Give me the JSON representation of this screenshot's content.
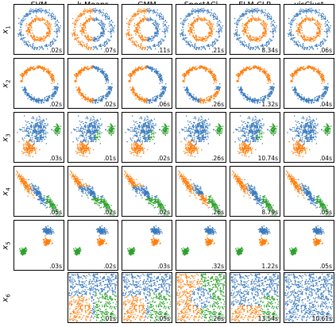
{
  "chart_data": {
    "type": "scatter",
    "methods": [
      "SVM",
      "k-Means",
      "GMM",
      "SpectACl",
      "ELM-CLR",
      "visClust"
    ],
    "datasets": [
      {
        "label": "x",
        "sub": "1",
        "kind": "rings",
        "times": [
          ".02s",
          ".07s",
          ".11s",
          ".21s",
          "8.34s",
          ".06s"
        ]
      },
      {
        "label": "x",
        "sub": "2",
        "kind": "moons",
        "times": [
          ".02s",
          ".02s",
          ".06s",
          ".26s",
          "1.32s",
          ".04s"
        ]
      },
      {
        "label": "x",
        "sub": "3",
        "kind": "blobs",
        "times": [
          ".03s",
          ".01s",
          ".02s",
          ".26s",
          "10.74s",
          ".04s"
        ]
      },
      {
        "label": "x",
        "sub": "4",
        "kind": "aniso",
        "times": [
          ".05s",
          ".02s",
          ".02s",
          ".26s",
          "8.79s",
          ".05s"
        ]
      },
      {
        "label": "x",
        "sub": "5",
        "kind": "varied",
        "times": [
          ".03s",
          ".02s",
          ".03s",
          ".32s",
          "1.22s",
          ".05s"
        ]
      },
      {
        "label": "x",
        "sub": "6",
        "kind": "uniform",
        "times": [
          "",
          ".01s",
          ".05s",
          ".26s",
          "13.54s",
          "10.61s"
        ]
      }
    ],
    "colors": {
      "blue": "#3b7bbf",
      "orange": "#ff7f0e",
      "green": "#2ca02c"
    },
    "axes": "hidden",
    "grid": false
  }
}
